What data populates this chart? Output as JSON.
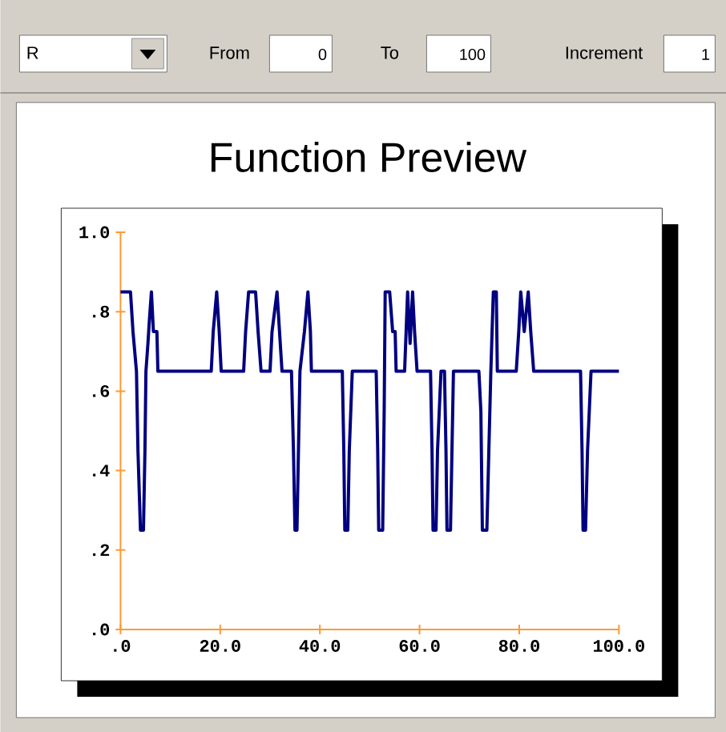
{
  "chart_data": {
    "type": "line",
    "title": "Function Preview",
    "annotations": [
      "R",
      "From",
      "0",
      "To",
      "100",
      "Increment",
      "1"
    ],
    "xlim": [
      0,
      100
    ],
    "ylim": [
      0,
      1
    ],
    "xticks": [
      {
        "value": 0,
        "label": ".0"
      },
      {
        "value": 20,
        "label": "20.0"
      },
      {
        "value": 40,
        "label": "40.0"
      },
      {
        "value": 60,
        "label": "60.0"
      },
      {
        "value": 80,
        "label": "80.0"
      },
      {
        "value": 100,
        "label": "100.0"
      }
    ],
    "yticks": [
      {
        "value": 0,
        "label": ".0"
      },
      {
        "value": 0.2,
        "label": ".2"
      },
      {
        "value": 0.4,
        "label": ".4"
      },
      {
        "value": 0.6,
        "label": ".6"
      },
      {
        "value": 0.8,
        "label": ".8"
      },
      {
        "value": 1,
        "label": "1.0"
      }
    ],
    "grid": false,
    "marker": "none",
    "line_style": "solid",
    "series": [
      {
        "color": "#000080",
        "x": [
          0,
          2,
          2.5,
          3.2,
          3.5,
          4,
          4.6,
          4.9,
          5.1,
          5.5,
          5.8,
          6.2,
          6.6,
          7.3,
          7.5,
          18.2,
          18.6,
          19.3,
          19.8,
          20.2,
          24.7,
          25.1,
          25.7,
          27.1,
          27.6,
          28.2,
          30,
          30.4,
          31.4,
          31.9,
          32.4,
          34.3,
          34.7,
          35,
          35.4,
          35.7,
          36,
          36.9,
          37.6,
          38.1,
          38.3,
          44.5,
          44.8,
          45,
          45.6,
          45.9,
          46.5,
          51.3,
          51.6,
          51.8,
          52.6,
          52.9,
          53.1,
          54,
          54.6,
          55.1,
          55.3,
          57,
          57.3,
          57.6,
          58.1,
          58.6,
          59,
          59.5,
          62.2,
          62.5,
          62.7,
          63.3,
          63.6,
          64.3,
          65,
          65.3,
          65.5,
          66.2,
          66.5,
          66.8,
          71.9,
          72.3,
          72.6,
          73.5,
          73.9,
          74.3,
          74.8,
          75.4,
          75.6,
          79.4,
          79.9,
          80.3,
          81,
          81.8,
          82.3,
          82.9,
          92.3,
          92.6,
          92.8,
          93.3,
          93.7,
          94.4,
          100
        ],
        "values": [
          0.85,
          0.85,
          0.75,
          0.65,
          0.45,
          0.25,
          0.25,
          0.45,
          0.65,
          0.72,
          0.78,
          0.85,
          0.75,
          0.75,
          0.65,
          0.65,
          0.75,
          0.85,
          0.75,
          0.65,
          0.65,
          0.75,
          0.85,
          0.85,
          0.75,
          0.65,
          0.65,
          0.75,
          0.85,
          0.75,
          0.65,
          0.65,
          0.45,
          0.25,
          0.25,
          0.45,
          0.65,
          0.75,
          0.85,
          0.75,
          0.65,
          0.65,
          0.45,
          0.25,
          0.25,
          0.45,
          0.65,
          0.65,
          0.45,
          0.25,
          0.25,
          0.55,
          0.85,
          0.85,
          0.75,
          0.75,
          0.65,
          0.65,
          0.75,
          0.85,
          0.72,
          0.85,
          0.75,
          0.65,
          0.65,
          0.45,
          0.25,
          0.25,
          0.45,
          0.65,
          0.65,
          0.45,
          0.25,
          0.25,
          0.45,
          0.65,
          0.65,
          0.55,
          0.25,
          0.25,
          0.45,
          0.65,
          0.85,
          0.85,
          0.65,
          0.65,
          0.75,
          0.85,
          0.75,
          0.85,
          0.75,
          0.65,
          0.65,
          0.45,
          0.25,
          0.25,
          0.45,
          0.65,
          0.65
        ]
      }
    ]
  }
}
